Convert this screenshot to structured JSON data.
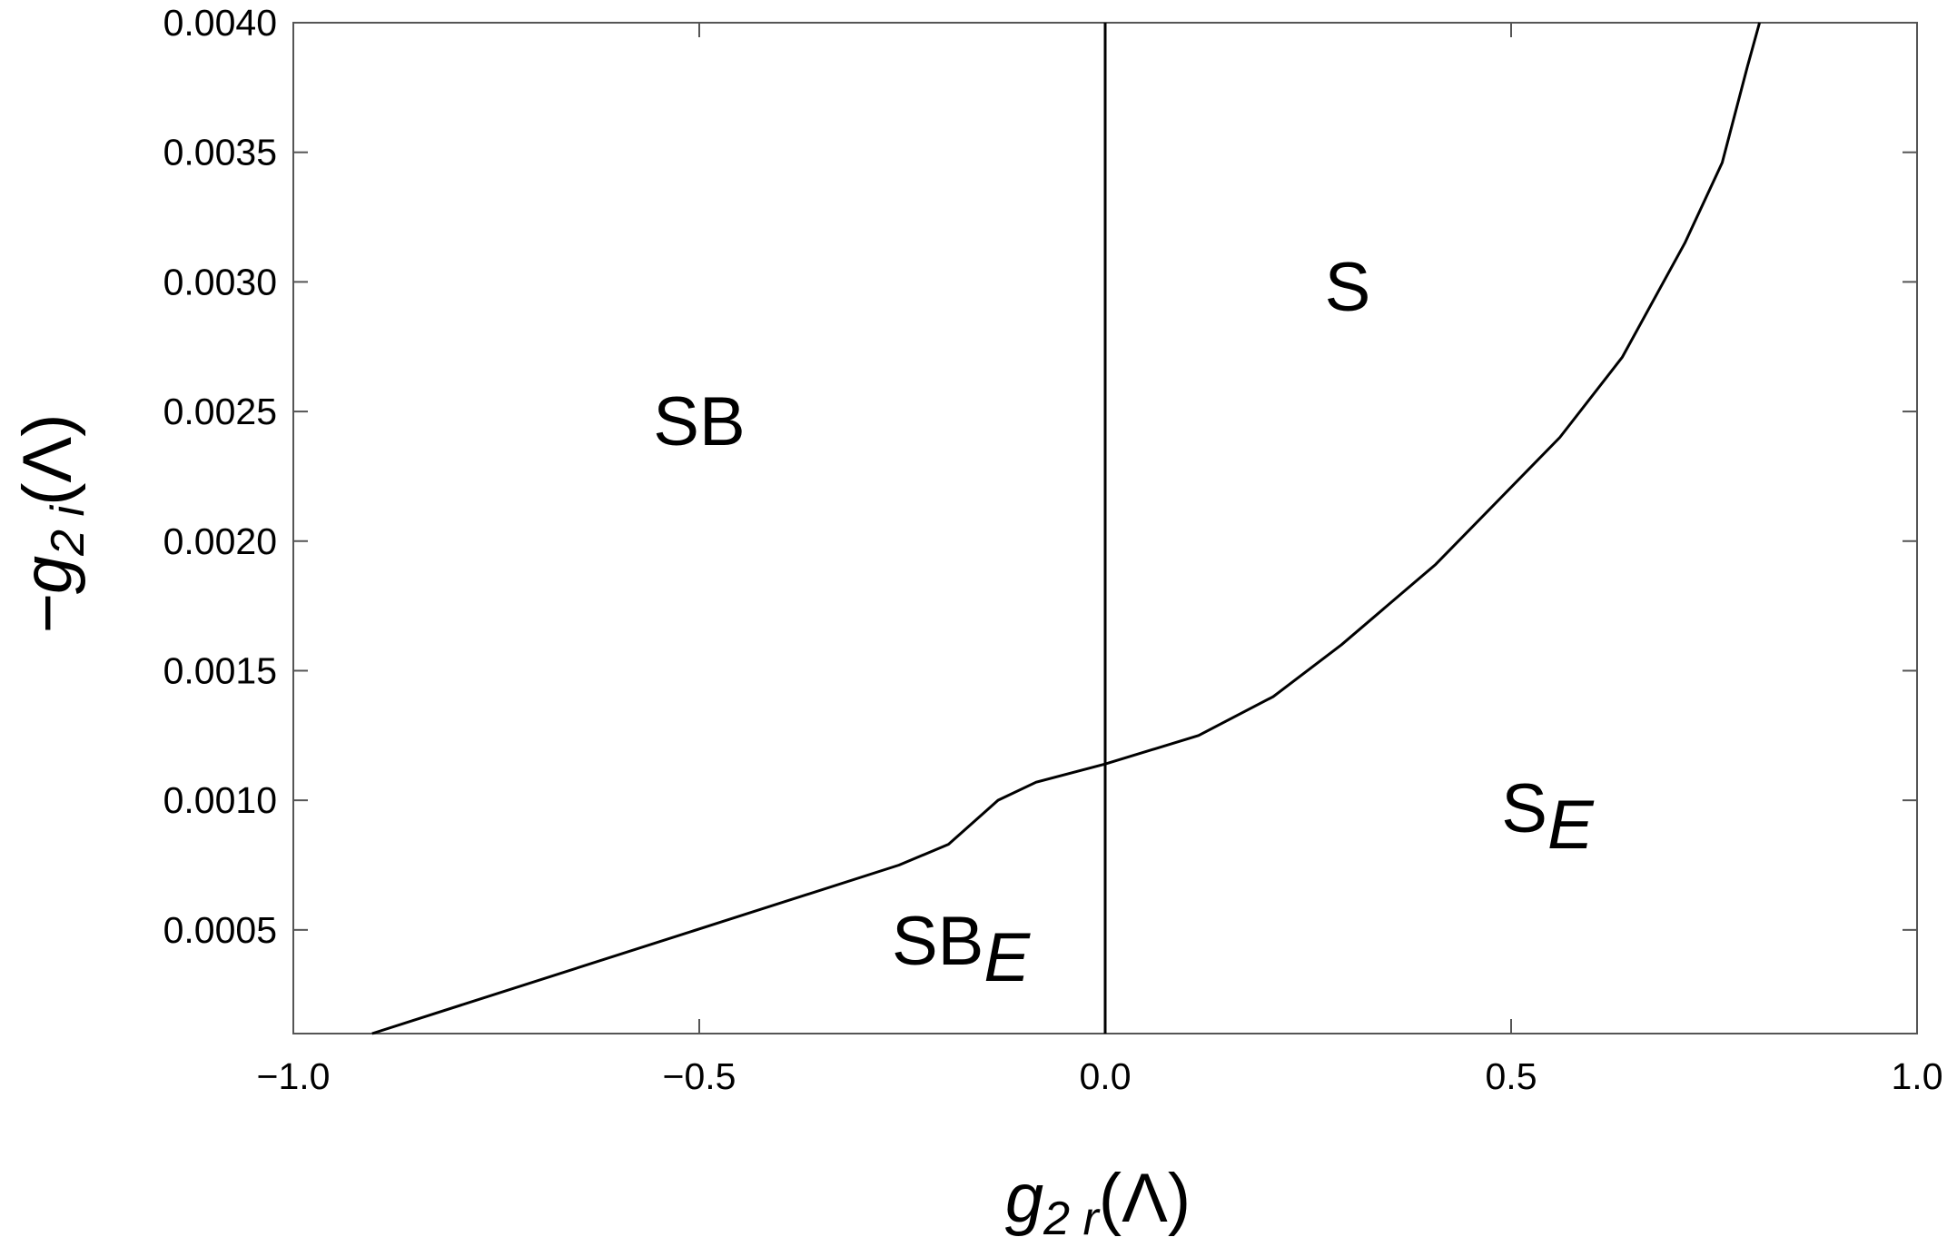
{
  "chart_data": {
    "type": "line",
    "x_label": {
      "main": "g",
      "sub": "2 r",
      "tail": "(Λ)"
    },
    "y_label": {
      "main": "−g",
      "sub": "2 i",
      "tail": "(Λ)"
    },
    "xlim": [
      -1,
      1
    ],
    "ylim": [
      0.0001,
      0.004
    ],
    "xticks": [
      {
        "value": -1,
        "label": "−1.0"
      },
      {
        "value": -0.5,
        "label": "−0.5"
      },
      {
        "value": 0,
        "label": "0.0"
      },
      0.5,
      {
        "value": 1,
        "label": "1.0"
      }
    ],
    "yticks": [
      {
        "value": 0.0005,
        "label": "0.0005"
      },
      {
        "value": 0.001,
        "label": "0.0010"
      },
      {
        "value": 0.0015,
        "label": "0.0015"
      },
      {
        "value": 0.002,
        "label": "0.0020"
      },
      {
        "value": 0.0025,
        "label": "0.0025"
      },
      {
        "value": 0.003,
        "label": "0.0030"
      },
      {
        "value": 0.0035,
        "label": "0.0035"
      },
      {
        "value": 0.004,
        "label": "0.0040"
      }
    ],
    "series": [
      {
        "color": "#000000",
        "x": [
          -0.903,
          -0.254,
          -0.193,
          -0.132,
          -0.085,
          0,
          0.115,
          0.207,
          0.291,
          0.407,
          0.56,
          0.637,
          0.714,
          0.76,
          0.791,
          0.806
        ],
        "y": [
          0.0001,
          0.00075,
          0.00083,
          0.001,
          0.00107,
          0.00114,
          0.00125,
          0.0014,
          0.0016,
          0.00191,
          0.0024,
          0.00271,
          0.00315,
          0.00346,
          0.00383,
          0.004
        ]
      },
      {
        "color": "#000000",
        "x": [
          0,
          0
        ],
        "y": [
          0.0001,
          0.004
        ]
      }
    ],
    "annotations": [
      {
        "text": "SB"
      },
      {
        "text": "S"
      },
      {
        "text": "SB",
        "sub": "E"
      },
      {
        "text": "S",
        "sub": "E"
      }
    ]
  }
}
